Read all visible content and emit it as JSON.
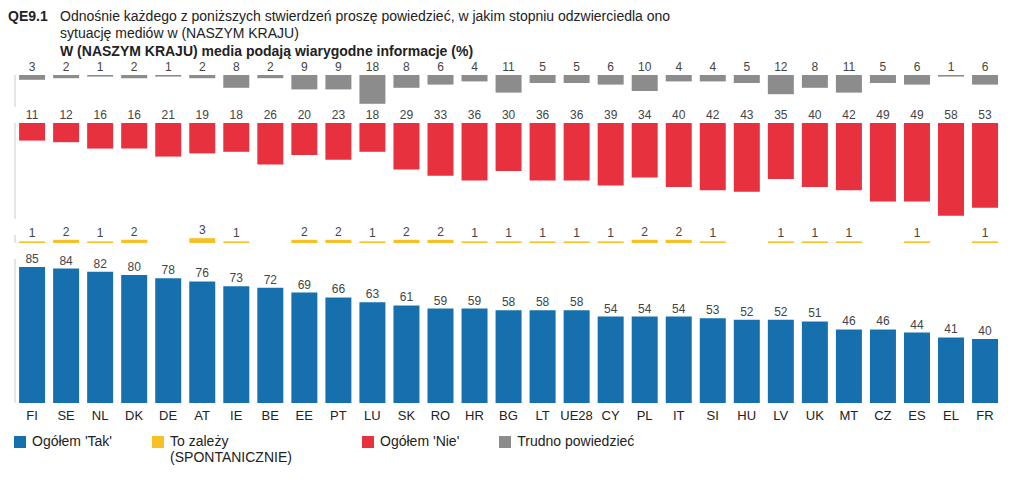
{
  "chart_data": [
    {
      "type": "bar",
      "title": "Odnośnie każdego z poniższych stwierdzeń proszę powiedzieć, w jakim stopniu odzwierciedla ono sytuację mediów w (NASZYM KRAJU)",
      "subtitle": "W (NASZYM KRAJU) media podają wiarygodne informacje  (%)",
      "annotations": [
        "QE9.1"
      ],
      "categories": [
        "FI",
        "SE",
        "NL",
        "DK",
        "DE",
        "AT",
        "IE",
        "BE",
        "EE",
        "PT",
        "LU",
        "SK",
        "RO",
        "HR",
        "BG",
        "LT",
        "UE28",
        "CY",
        "PL",
        "IT",
        "SI",
        "HU",
        "LV",
        "UK",
        "MT",
        "CZ",
        "ES",
        "EL",
        "FR"
      ],
      "series": [
        {
          "name": "Trudno powiedzieć",
          "color": "#8c8c8c",
          "values": [
            3,
            2,
            1,
            2,
            1,
            2,
            8,
            2,
            9,
            9,
            18,
            8,
            6,
            4,
            11,
            5,
            5,
            6,
            10,
            4,
            4,
            5,
            12,
            8,
            11,
            5,
            6,
            1,
            6
          ]
        }
      ],
      "ylim": [
        20,
        0
      ],
      "data_labels": true,
      "tick_labels": false
    },
    {
      "type": "bar",
      "categories": [
        "FI",
        "SE",
        "NL",
        "DK",
        "DE",
        "AT",
        "IE",
        "BE",
        "EE",
        "PT",
        "LU",
        "SK",
        "RO",
        "HR",
        "BG",
        "LT",
        "UE28",
        "CY",
        "PL",
        "IT",
        "SI",
        "HU",
        "LV",
        "UK",
        "MT",
        "CZ",
        "ES",
        "EL",
        "FR"
      ],
      "series": [
        {
          "name": "Ogółem 'Nie'",
          "color": "#e8313f",
          "values": [
            11,
            12,
            16,
            16,
            21,
            19,
            18,
            26,
            20,
            23,
            18,
            29,
            33,
            36,
            30,
            36,
            36,
            39,
            34,
            40,
            42,
            43,
            35,
            40,
            42,
            49,
            49,
            58,
            53
          ]
        }
      ],
      "ylim": [
        60,
        0
      ],
      "data_labels": true,
      "tick_labels": false
    },
    {
      "type": "bar",
      "categories": [
        "FI",
        "SE",
        "NL",
        "DK",
        "DE",
        "AT",
        "IE",
        "BE",
        "EE",
        "PT",
        "LU",
        "SK",
        "RO",
        "HR",
        "BG",
        "LT",
        "UE28",
        "CY",
        "PL",
        "IT",
        "SI",
        "HU",
        "LV",
        "UK",
        "MT",
        "CZ",
        "ES",
        "EL",
        "FR"
      ],
      "series": [
        {
          "name": "To zależy (SPONTANICZNIE)",
          "color": "#f5c124",
          "values": [
            1,
            2,
            1,
            2,
            0,
            3,
            1,
            0,
            2,
            2,
            1,
            2,
            2,
            1,
            1,
            1,
            1,
            1,
            2,
            2,
            1,
            0,
            1,
            1,
            1,
            0,
            1,
            0,
            1
          ]
        }
      ],
      "ylim": [
        0,
        5
      ],
      "data_labels": true,
      "tick_labels": false
    },
    {
      "type": "bar",
      "categories": [
        "FI",
        "SE",
        "NL",
        "DK",
        "DE",
        "AT",
        "IE",
        "BE",
        "EE",
        "PT",
        "LU",
        "SK",
        "RO",
        "HR",
        "BG",
        "LT",
        "UE28",
        "CY",
        "PL",
        "IT",
        "SI",
        "HU",
        "LV",
        "UK",
        "MT",
        "CZ",
        "ES",
        "EL",
        "FR"
      ],
      "series": [
        {
          "name": "Ogółem 'Tak'",
          "color": "#1670ae",
          "values": [
            85,
            84,
            82,
            80,
            78,
            76,
            73,
            72,
            69,
            66,
            63,
            61,
            59,
            59,
            58,
            58,
            58,
            54,
            54,
            54,
            53,
            52,
            52,
            51,
            46,
            46,
            44,
            41,
            40
          ]
        }
      ],
      "ylim": [
        0,
        90
      ],
      "data_labels": true,
      "tick_labels": "x"
    }
  ]
}
